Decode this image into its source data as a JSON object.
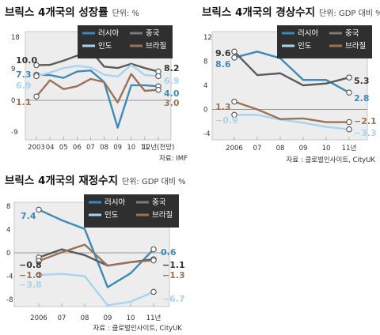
{
  "colors": {
    "russia": "#3d8ab8",
    "china": "#5a5a5a",
    "india": "#a8d4ef",
    "brazil": "#9a7258",
    "zero_line": "#7a7a7a",
    "legend_bg": "#2f2f2f",
    "panel_bg": "#ededed"
  },
  "chart_data": [
    {
      "type": "line",
      "title": "브릭스 4개국의 성장률",
      "unit": "단위: %",
      "source": "자료: IMF",
      "categories": [
        "2003",
        "04",
        "05",
        "06",
        "07",
        "08",
        "09",
        "10",
        "11",
        "12년(전망)"
      ],
      "y_ticks": [
        "18",
        "9",
        "0",
        "-9"
      ],
      "ylim": [
        -10,
        18
      ],
      "legend": [
        "러시아",
        "중국",
        "인도",
        "브라질"
      ],
      "series": [
        {
          "name": "러시아",
          "color_key": "russia",
          "values": [
            7.3,
            7.2,
            6.4,
            8.2,
            8.5,
            5.2,
            -7.8,
            4.3,
            4.3,
            4.0
          ]
        },
        {
          "name": "중국",
          "color_key": "china",
          "values": [
            10.0,
            10.1,
            11.3,
            12.7,
            14.2,
            9.6,
            9.2,
            10.4,
            9.2,
            8.2
          ]
        },
        {
          "name": "인도",
          "color_key": "india",
          "values": [
            6.9,
            7.9,
            9.2,
            9.8,
            9.4,
            7.3,
            6.8,
            10.1,
            7.2,
            6.9
          ]
        },
        {
          "name": "브라질",
          "color_key": "brazil",
          "values": [
            1.1,
            5.7,
            3.2,
            4.0,
            6.1,
            5.2,
            -0.6,
            7.5,
            2.7,
            3.0
          ]
        }
      ],
      "labels": [
        {
          "text": "10.0",
          "series": 1,
          "at": "start"
        },
        {
          "text": "7.3",
          "series": 0,
          "at": "start"
        },
        {
          "text": "6.9",
          "series": 2,
          "at": "start"
        },
        {
          "text": "1.1",
          "series": 3,
          "at": "start"
        },
        {
          "text": "8.2",
          "series": 1,
          "at": "end"
        },
        {
          "text": "6.9",
          "series": 2,
          "at": "end"
        },
        {
          "text": "4.0",
          "series": 0,
          "at": "end"
        },
        {
          "text": "3.0",
          "series": 3,
          "at": "end"
        }
      ]
    },
    {
      "type": "line",
      "title": "브릭스 4개국의 경상수지",
      "unit": "단위: GDP 대비 %",
      "source": "자료 : 클로벌인사이트, CityUK",
      "categories": [
        "2006",
        "07",
        "08",
        "09",
        "10",
        "11년"
      ],
      "y_ticks": [
        "12",
        "8",
        "4",
        "0",
        "-4"
      ],
      "ylim": [
        -4,
        12
      ],
      "legend": [
        "러시아",
        "중국",
        "인도",
        "브라질"
      ],
      "series": [
        {
          "name": "러시아",
          "color_key": "russia",
          "values": [
            8.6,
            9.6,
            8.5,
            4.9,
            4.9,
            2.8
          ]
        },
        {
          "name": "중국",
          "color_key": "china",
          "values": [
            9.6,
            5.7,
            6.0,
            4.0,
            4.3,
            5.3
          ]
        },
        {
          "name": "인도",
          "color_key": "india",
          "values": [
            -0.9,
            -0.9,
            -1.7,
            -2.2,
            -2.9,
            -3.3
          ]
        },
        {
          "name": "브라질",
          "color_key": "brazil",
          "values": [
            1.3,
            0.0,
            -1.6,
            -1.5,
            -2.1,
            -2.1
          ]
        }
      ],
      "labels": [
        {
          "text": "9.6",
          "series": 1,
          "at": "start"
        },
        {
          "text": "8.6",
          "series": 0,
          "at": "start"
        },
        {
          "text": "1.3",
          "series": 3,
          "at": "start"
        },
        {
          "text": "−0.9",
          "series": 2,
          "at": "start"
        },
        {
          "text": "5.3",
          "series": 1,
          "at": "end"
        },
        {
          "text": "2.8",
          "series": 0,
          "at": "end"
        },
        {
          "text": "−2.1",
          "series": 3,
          "at": "end"
        },
        {
          "text": "−3.3",
          "series": 2,
          "at": "end"
        }
      ]
    },
    {
      "type": "line",
      "title": "브릭스 4개국의 재정수지",
      "unit": "단위: GDP 대비 %",
      "source": "자료 : 클로벌인사이트, CityUK",
      "categories": [
        "2006",
        "07",
        "08",
        "09",
        "10",
        "11년"
      ],
      "y_ticks": [
        "8",
        "4",
        "0",
        "-4",
        "-8"
      ],
      "ylim": [
        -8,
        8
      ],
      "legend": [
        "러시아",
        "중국",
        "인도",
        "브라질"
      ],
      "series": [
        {
          "name": "러시아",
          "color_key": "russia",
          "values": [
            7.4,
            5.6,
            4.1,
            -5.9,
            -3.5,
            0.6
          ]
        },
        {
          "name": "중국",
          "color_key": "china",
          "values": [
            -0.8,
            0.6,
            -0.4,
            -2.2,
            -1.6,
            -1.1
          ]
        },
        {
          "name": "인도",
          "color_key": "india",
          "values": [
            -3.8,
            -3.6,
            -4.0,
            -9.0,
            -8.4,
            -6.7
          ]
        },
        {
          "name": "브라질",
          "color_key": "brazil",
          "values": [
            -1.4,
            0.1,
            1.4,
            -2.2,
            -1.6,
            -1.3
          ]
        }
      ],
      "labels": [
        {
          "text": "7.4",
          "series": 0,
          "at": "start"
        },
        {
          "text": "−0.8",
          "series": 1,
          "at": "start"
        },
        {
          "text": "−1.4",
          "series": 3,
          "at": "start"
        },
        {
          "text": "−3.8",
          "series": 2,
          "at": "start"
        },
        {
          "text": "0.6",
          "series": 0,
          "at": "end"
        },
        {
          "text": "−1.1",
          "series": 1,
          "at": "end"
        },
        {
          "text": "−1.3",
          "series": 3,
          "at": "end"
        },
        {
          "text": "−6.7",
          "series": 2,
          "at": "end"
        }
      ]
    }
  ]
}
